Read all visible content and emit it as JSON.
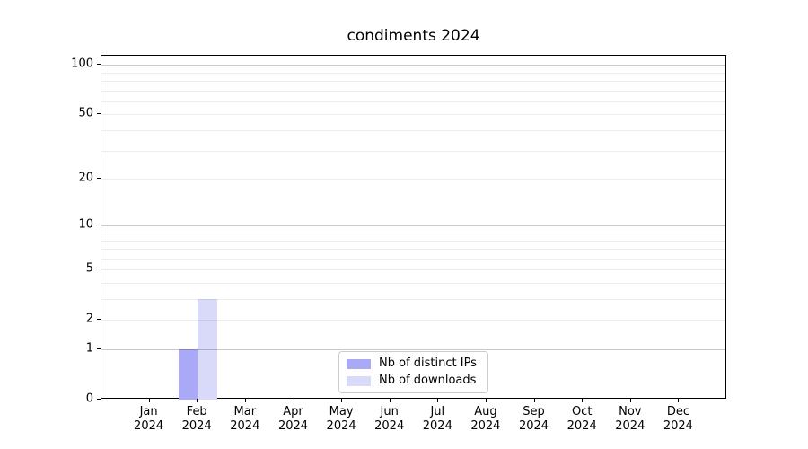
{
  "chart_data": {
    "type": "bar",
    "title": "condiments 2024",
    "categories": [
      "Jan 2024",
      "Feb 2024",
      "Mar 2024",
      "Apr 2024",
      "May 2024",
      "Jun 2024",
      "Jul 2024",
      "Aug 2024",
      "Sep 2024",
      "Oct 2024",
      "Nov 2024",
      "Dec 2024"
    ],
    "series": [
      {
        "name": "Nb of distinct IPs",
        "color": "#a9a9f7",
        "values": [
          0,
          1,
          0,
          0,
          0,
          0,
          0,
          0,
          0,
          0,
          0,
          0
        ]
      },
      {
        "name": "Nb of downloads",
        "color": "#d9d9fa",
        "values": [
          0,
          3,
          0,
          0,
          0,
          0,
          0,
          0,
          0,
          0,
          0,
          0
        ]
      }
    ],
    "xlabel": "",
    "ylabel": "",
    "yscale": "log1p",
    "ylim": [
      0,
      113.6
    ],
    "yticks": [
      0,
      1,
      2,
      5,
      10,
      20,
      50,
      100
    ],
    "grid": {
      "major_values": [
        1,
        10,
        100
      ],
      "minor_values": [
        2,
        3,
        4,
        5,
        6,
        7,
        8,
        9,
        20,
        30,
        40,
        50,
        60,
        70,
        80,
        90
      ]
    },
    "legend_position": "lower center",
    "bar_group_width_fraction": 0.8,
    "colors": {
      "axis": "#000000",
      "background": "#ffffff",
      "legend_border": "#cccccc"
    }
  }
}
